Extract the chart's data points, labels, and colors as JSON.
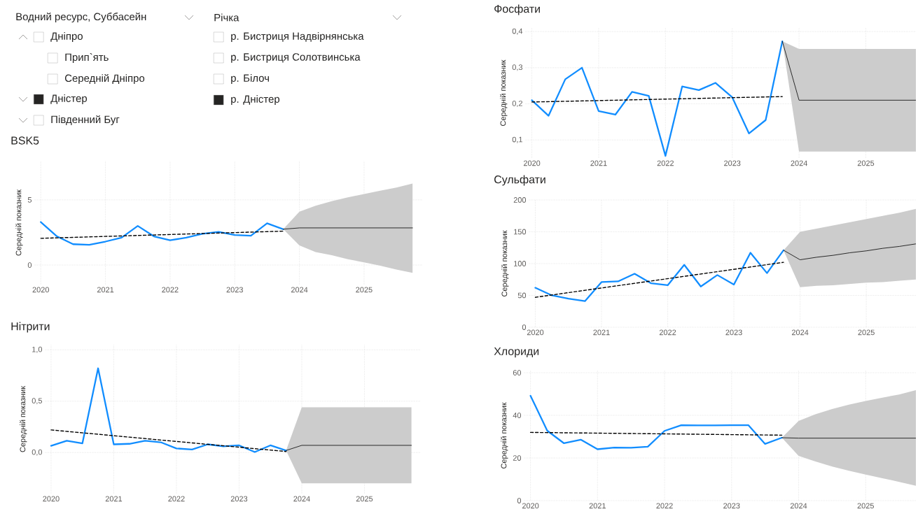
{
  "chart_data": [
    {
      "type": "other",
      "title": "Водний ресурс, Суббасейн",
      "categories": [
        "Дніпро",
        "Прип`ять",
        "Середній Дніпро",
        "Дністер",
        "Південний Буг"
      ],
      "colors": [
        "#ffffff",
        "#ffffff",
        "#ffffff",
        "#252423",
        "#ffffff"
      ]
    },
    {
      "type": "other",
      "title": "Річка",
      "categories": [
        "р. Бистриця Надвірнянська",
        "р. Бистриця Солотвинська",
        "р. Білоч",
        "р. Дністер"
      ],
      "colors": [
        "#ffffff",
        "#ffffff",
        "#ffffff",
        "#252423"
      ]
    },
    {
      "type": "line",
      "title": "BSK5",
      "ylabel": "Середній показник",
      "grid": true,
      "x": [
        2020,
        2020.25,
        2020.5,
        2020.75,
        2021,
        2021.25,
        2021.5,
        2021.75,
        2022,
        2022.25,
        2022.5,
        2022.75,
        2023,
        2023.25,
        2023.5,
        2023.75
      ],
      "xlim": [
        2019.9,
        2025.9
      ],
      "xticks": [
        2020,
        2021,
        2022,
        2023,
        2024,
        2025
      ],
      "ylim": [
        -1.5,
        8
      ],
      "yticks": [
        0,
        5
      ],
      "series": [
        {
          "color": "#118dff",
          "values": [
            3.3,
            2.2,
            1.6,
            1.55,
            1.8,
            2.1,
            3.0,
            2.2,
            1.9,
            2.1,
            2.4,
            2.55,
            2.3,
            2.25,
            3.2,
            2.75
          ]
        },
        {
          "color": "#000000",
          "line_style": "dashed",
          "x": [
            2020,
            2023.75
          ],
          "values": [
            2.05,
            2.6
          ]
        },
        {
          "color": "#000000",
          "x": [
            2023.75,
            2024,
            2024.25,
            2024.5,
            2024.75,
            2025,
            2025.25,
            2025.5,
            2025.75
          ],
          "values": [
            2.75,
            2.85,
            2.85,
            2.85,
            2.85,
            2.85,
            2.85,
            2.85,
            2.85
          ],
          "lower": [
            2.75,
            1.5,
            1.0,
            0.75,
            0.45,
            0.2,
            -0.05,
            -0.35,
            -0.6
          ],
          "upper": [
            2.75,
            4.1,
            4.55,
            4.9,
            5.2,
            5.45,
            5.7,
            5.95,
            6.25
          ]
        }
      ]
    },
    {
      "type": "line",
      "title": "Нітрити",
      "ylabel": "Середній показник",
      "grid": true,
      "x": [
        2020,
        2020.25,
        2020.5,
        2020.75,
        2021,
        2021.25,
        2021.5,
        2021.75,
        2022,
        2022.25,
        2022.5,
        2022.75,
        2023,
        2023.25,
        2023.5,
        2023.75
      ],
      "xlim": [
        2019.9,
        2025.9
      ],
      "xticks": [
        2020,
        2021,
        2022,
        2023,
        2024,
        2025
      ],
      "ylim": [
        -0.4,
        1.05
      ],
      "yticks": [
        {
          "value": 0,
          "label": "0,0"
        },
        {
          "value": 0.5,
          "label": "0,5"
        },
        {
          "value": 1,
          "label": "1,0"
        }
      ],
      "series": [
        {
          "color": "#118dff",
          "values": [
            0.065,
            0.115,
            0.09,
            0.82,
            0.08,
            0.085,
            0.115,
            0.1,
            0.04,
            0.03,
            0.08,
            0.06,
            0.07,
            0.005,
            0.07,
            0.02
          ]
        },
        {
          "color": "#000000",
          "line_style": "dashed",
          "x": [
            2020,
            2023.75
          ],
          "values": [
            0.22,
            0.01
          ]
        },
        {
          "color": "#000000",
          "x": [
            2023.75,
            2024,
            2024.25,
            2024.5,
            2024.75,
            2025,
            2025.25,
            2025.5,
            2025.75
          ],
          "values": [
            0.02,
            0.07,
            0.07,
            0.07,
            0.07,
            0.07,
            0.07,
            0.07,
            0.07
          ],
          "lower": [
            0.02,
            -0.3,
            -0.3,
            -0.3,
            -0.3,
            -0.3,
            -0.3,
            -0.3,
            -0.3
          ],
          "upper": [
            0.02,
            0.44,
            0.44,
            0.44,
            0.44,
            0.44,
            0.44,
            0.44,
            0.44
          ]
        }
      ]
    },
    {
      "type": "line",
      "title": "Фосфати",
      "ylabel": "Середній показник",
      "grid": true,
      "x": [
        2020,
        2020.25,
        2020.5,
        2020.75,
        2021,
        2021.25,
        2021.5,
        2021.75,
        2022,
        2022.25,
        2022.5,
        2022.75,
        2023,
        2023.25,
        2023.5,
        2023.75
      ],
      "xlim": [
        2019.9,
        2025.75
      ],
      "xticks": [
        2020,
        2021,
        2022,
        2023,
        2024,
        2025
      ],
      "ylim": [
        0.05,
        0.41
      ],
      "yticks": [
        {
          "value": 0.1,
          "label": "0,1"
        },
        {
          "value": 0.2,
          "label": "0,2"
        },
        {
          "value": 0.3,
          "label": "0,3"
        },
        {
          "value": 0.4,
          "label": "0,4"
        }
      ],
      "series": [
        {
          "color": "#118dff",
          "values": [
            0.21,
            0.167,
            0.268,
            0.3,
            0.18,
            0.17,
            0.233,
            0.222,
            0.056,
            0.248,
            0.238,
            0.258,
            0.218,
            0.118,
            0.155,
            0.373
          ]
        },
        {
          "color": "#000000",
          "line_style": "dashed",
          "x": [
            2020,
            2023.75
          ],
          "values": [
            0.205,
            0.22
          ]
        },
        {
          "color": "#000000",
          "x": [
            2023.75,
            2024,
            2024.25,
            2024.5,
            2024.75,
            2025,
            2025.25,
            2025.5,
            2025.75
          ],
          "values": [
            0.373,
            0.21,
            0.21,
            0.21,
            0.21,
            0.21,
            0.21,
            0.21,
            0.21
          ],
          "lower": [
            0.373,
            0.068,
            0.068,
            0.068,
            0.068,
            0.068,
            0.068,
            0.068,
            0.068
          ],
          "upper": [
            0.373,
            0.352,
            0.352,
            0.352,
            0.352,
            0.352,
            0.352,
            0.352,
            0.352
          ]
        }
      ]
    },
    {
      "type": "line",
      "title": "Сульфати",
      "ylabel": "Середній показник",
      "grid": true,
      "x": [
        2020,
        2020.25,
        2020.5,
        2020.75,
        2021,
        2021.25,
        2021.5,
        2021.75,
        2022,
        2022.25,
        2022.5,
        2022.75,
        2023,
        2023.25,
        2023.5,
        2023.75
      ],
      "xlim": [
        2019.9,
        2025.75
      ],
      "xticks": [
        2020,
        2021,
        2022,
        2023,
        2024,
        2025
      ],
      "ylim": [
        0,
        200
      ],
      "yticks": [
        0,
        50,
        100,
        150,
        200
      ],
      "series": [
        {
          "color": "#118dff",
          "values": [
            62,
            50,
            45,
            41,
            71,
            72,
            84,
            69,
            66,
            98,
            64,
            82,
            67,
            117,
            85,
            121
          ]
        },
        {
          "color": "#000000",
          "line_style": "dashed",
          "x": [
            2020,
            2023.75
          ],
          "values": [
            47,
            102
          ]
        },
        {
          "color": "#000000",
          "x": [
            2023.75,
            2024,
            2024.25,
            2024.5,
            2024.75,
            2025,
            2025.25,
            2025.5,
            2025.75
          ],
          "values": [
            121,
            106,
            110,
            113,
            117,
            120,
            124,
            127,
            131
          ],
          "lower": [
            121,
            63,
            65,
            66,
            68,
            70,
            71,
            73,
            75
          ],
          "upper": [
            121,
            150,
            155,
            160,
            165,
            170,
            175,
            180,
            186
          ]
        }
      ]
    },
    {
      "type": "line",
      "title": "Хлориди",
      "ylabel": "Середній показник",
      "grid": true,
      "x": [
        2020,
        2020.25,
        2020.5,
        2020.75,
        2021,
        2021.25,
        2021.5,
        2021.75,
        2022,
        2022.25,
        2022.5,
        2022.75,
        2023,
        2023.25,
        2023.5,
        2023.75
      ],
      "xlim": [
        2019.9,
        2025.75
      ],
      "xticks": [
        2020,
        2021,
        2022,
        2023,
        2024,
        2025
      ],
      "ylim": [
        0,
        61
      ],
      "yticks": [
        0,
        20,
        40,
        60
      ],
      "series": [
        {
          "color": "#118dff",
          "values": [
            49.2,
            32.8,
            26.9,
            28.6,
            24.1,
            24.9,
            24.8,
            25.3,
            32.7,
            35.4,
            35.3,
            35.3,
            35.4,
            35.4,
            26.6,
            29.5
          ]
        },
        {
          "color": "#000000",
          "line_style": "dashed",
          "x": [
            2020,
            2023.75
          ],
          "values": [
            32,
            30.7
          ]
        },
        {
          "color": "#000000",
          "x": [
            2023.75,
            2024,
            2024.25,
            2024.5,
            2024.75,
            2025,
            2025.25,
            2025.5,
            2025.75
          ],
          "values": [
            29.5,
            29.3,
            29.3,
            29.3,
            29.3,
            29.3,
            29.3,
            29.3,
            29.3
          ],
          "lower": [
            29.5,
            21,
            18.4,
            16,
            14,
            12.2,
            10.5,
            8.8,
            7
          ],
          "upper": [
            29.5,
            37.4,
            40.5,
            43,
            45,
            46.7,
            48.3,
            49.8,
            51.8
          ]
        }
      ]
    }
  ]
}
